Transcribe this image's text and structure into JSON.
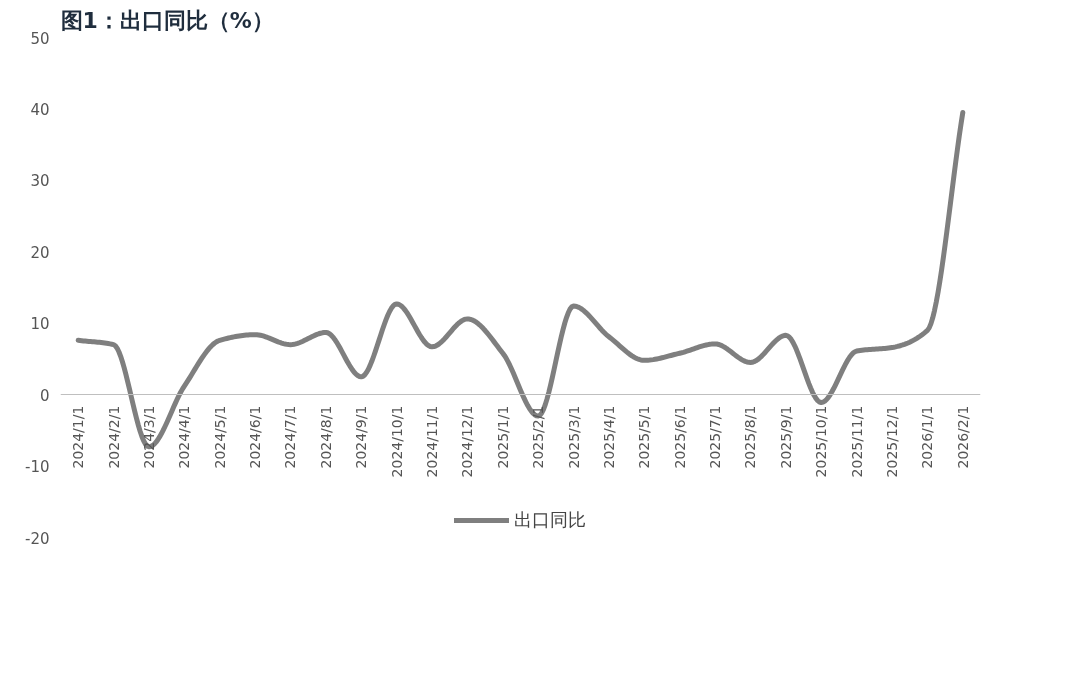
{
  "chart_data": {
    "type": "line",
    "title": "图1：出口同比（%）",
    "categories": [
      "2024/1/1",
      "2024/2/1",
      "2024/3/1",
      "2024/4/1",
      "2024/5/1",
      "2024/6/1",
      "2024/7/1",
      "2024/8/1",
      "2024/9/1",
      "2024/10/1",
      "2024/11/1",
      "2024/12/1",
      "2025/1/1",
      "2025/2/1",
      "2025/3/1",
      "2025/4/1",
      "2025/5/1",
      "2025/6/1",
      "2025/7/1",
      "2025/8/1",
      "2025/9/1",
      "2025/10/1",
      "2025/11/1",
      "2025/12/1",
      "2026/1/1",
      "2026/2/1"
    ],
    "series": [
      {
        "name": "出口同比",
        "color": "#7f7f7f",
        "values": [
          7.6,
          7.0,
          -7.3,
          1.2,
          7.6,
          8.4,
          7.0,
          8.7,
          2.5,
          12.7,
          6.7,
          10.6,
          5.8,
          -3.0,
          12.4,
          8.1,
          4.8,
          5.8,
          7.1,
          4.5,
          8.3,
          -1.1,
          6.1,
          6.6,
          9.0,
          39.5
        ]
      }
    ],
    "ylim": [
      -20,
      50
    ],
    "yticks": [
      -20,
      -10,
      0,
      10,
      20,
      30,
      40,
      50
    ],
    "grid": false,
    "legend": "bottom",
    "marker": "none",
    "line_style": "solid"
  }
}
